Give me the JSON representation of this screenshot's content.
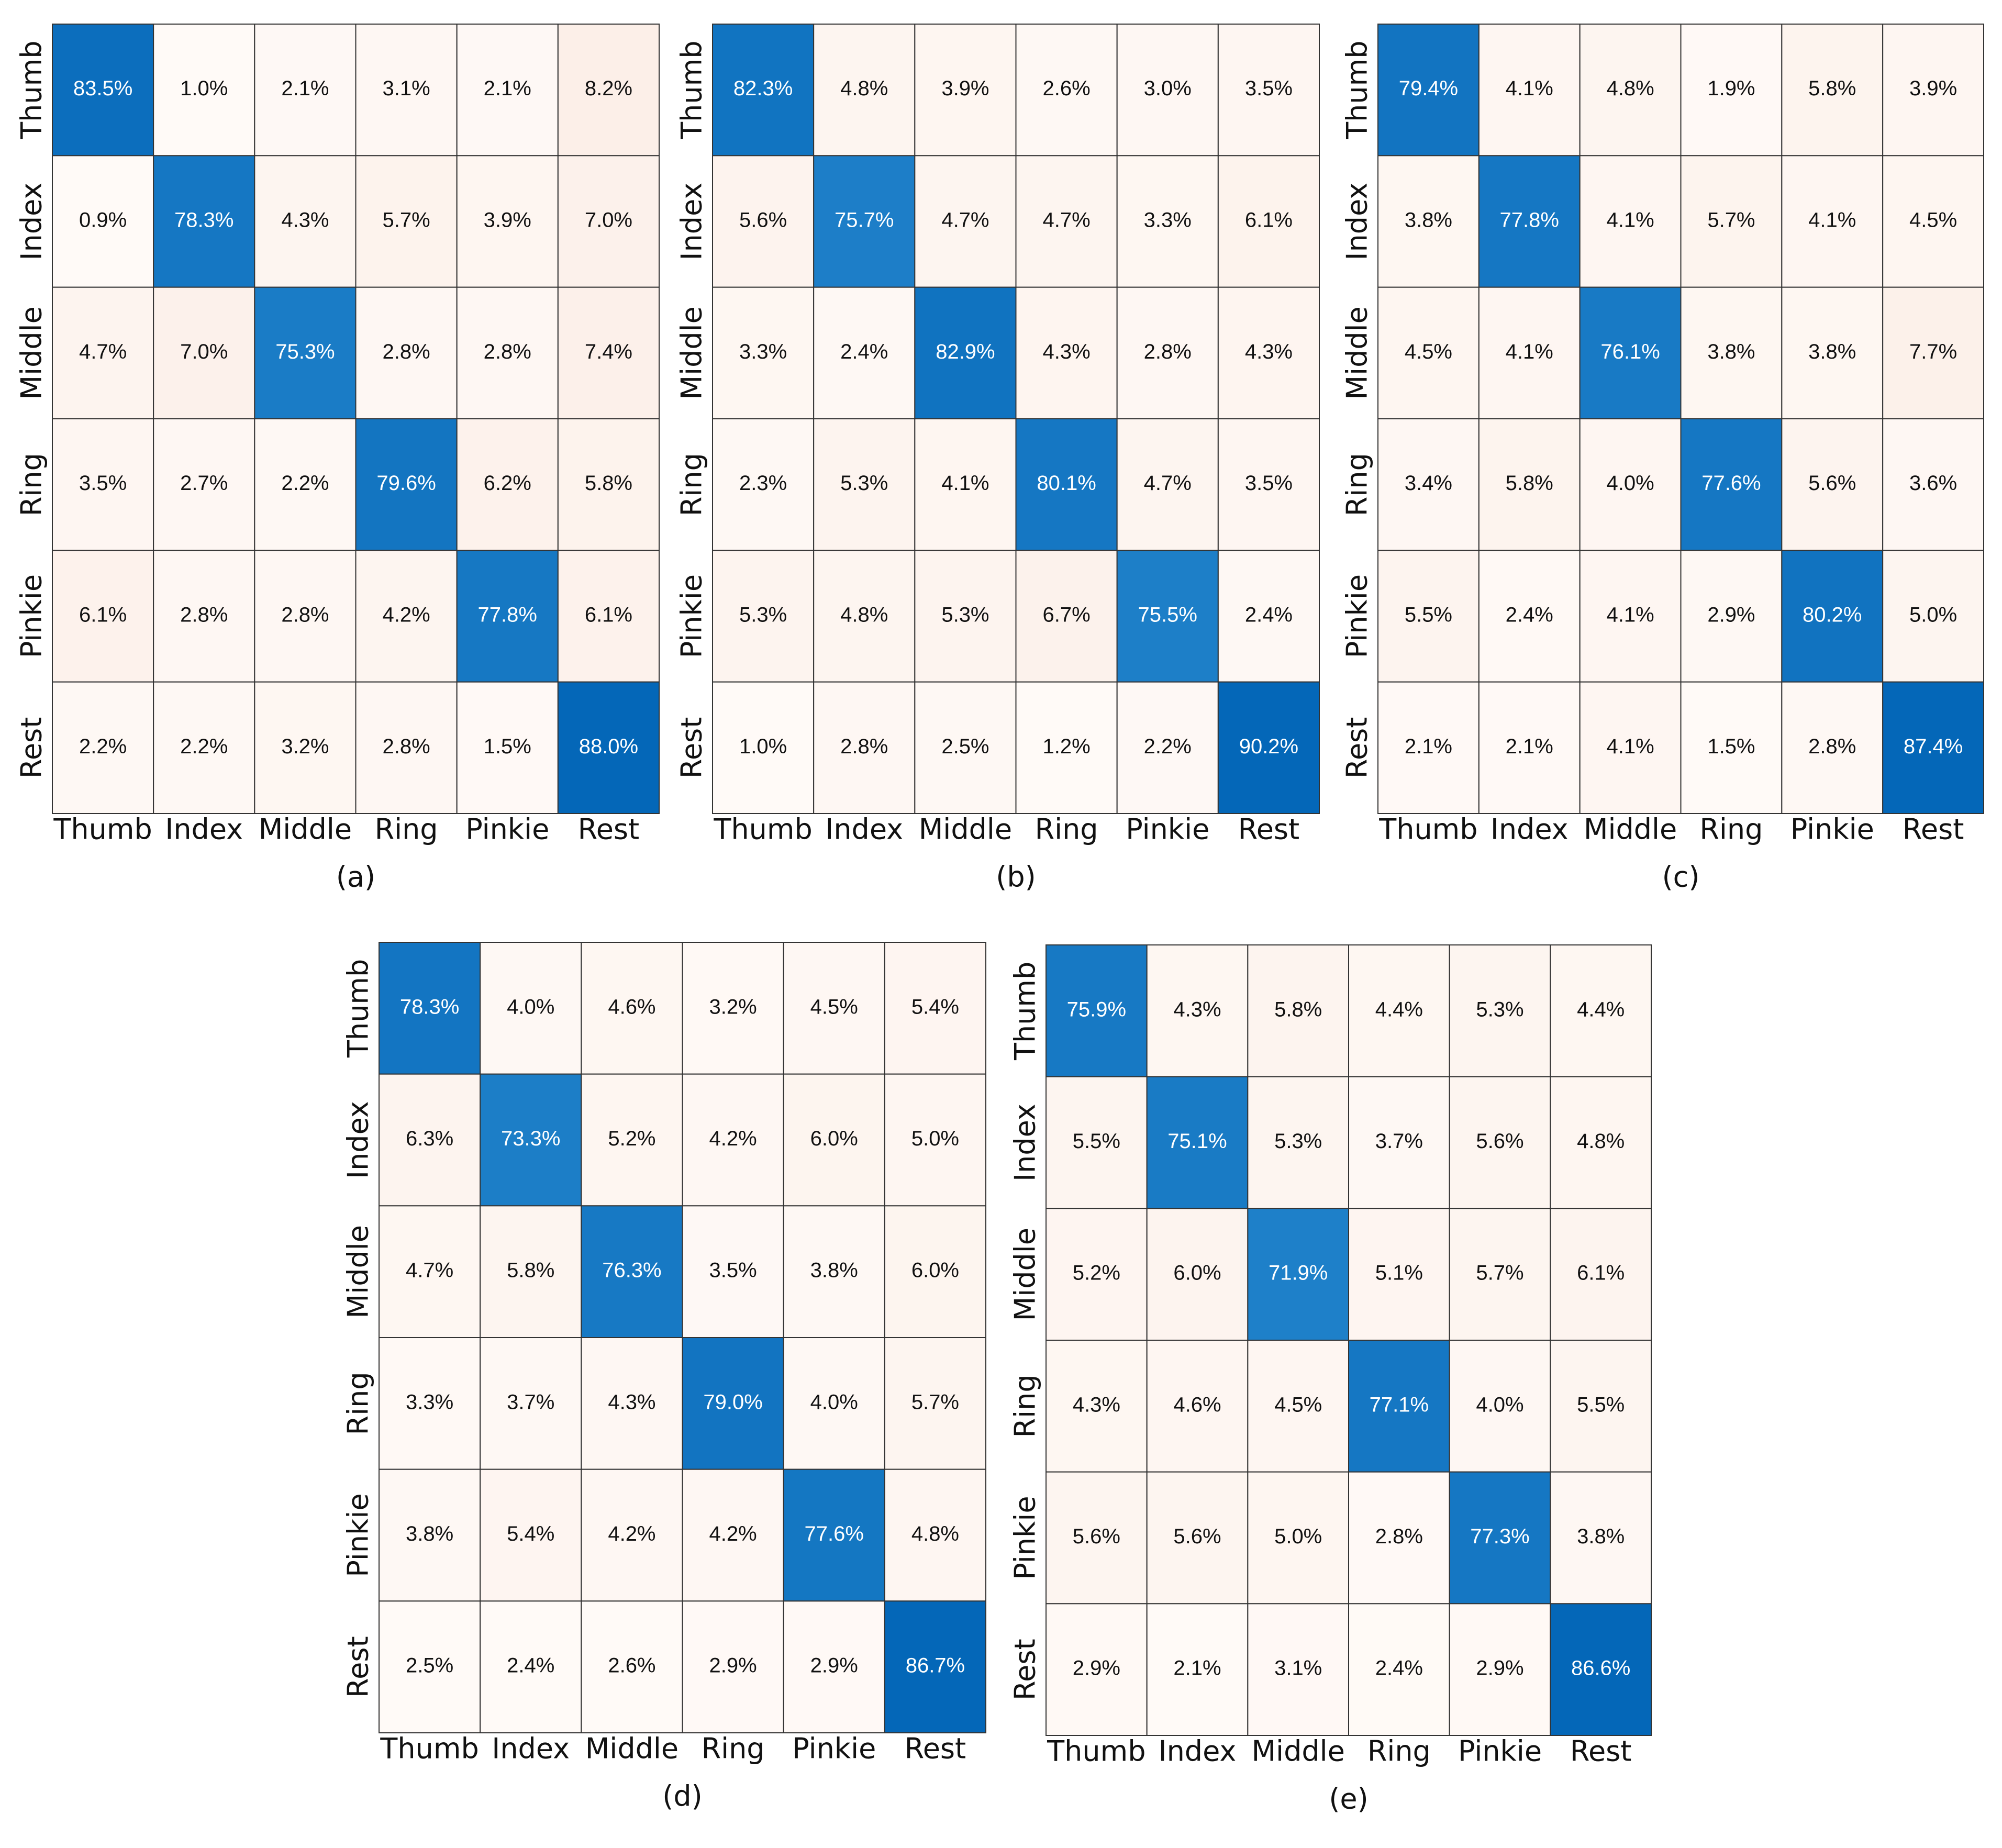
{
  "chart_data": [
    {
      "type": "heatmap",
      "caption": "(a)",
      "x_categories": [
        "Thumb",
        "Index",
        "Middle",
        "Ring",
        "Pinkie",
        "Rest"
      ],
      "y_categories": [
        "Thumb",
        "Index",
        "Middle",
        "Ring",
        "Pinkie",
        "Rest"
      ],
      "values": [
        [
          83.5,
          1.0,
          2.1,
          3.1,
          2.1,
          8.2
        ],
        [
          0.9,
          78.3,
          4.3,
          5.7,
          3.9,
          7.0
        ],
        [
          4.7,
          7.0,
          75.3,
          2.8,
          2.8,
          7.4
        ],
        [
          3.5,
          2.7,
          2.2,
          79.6,
          6.2,
          5.8
        ],
        [
          6.1,
          2.8,
          2.8,
          4.2,
          77.8,
          6.1
        ],
        [
          2.2,
          2.2,
          3.2,
          2.8,
          1.5,
          88.0
        ]
      ],
      "value_labels": [
        [
          "83.5%",
          "1.0%",
          "2.1%",
          "3.1%",
          "2.1%",
          "8.2%"
        ],
        [
          "0.9%",
          "78.3%",
          "4.3%",
          "5.7%",
          "3.9%",
          "7.0%"
        ],
        [
          "4.7%",
          "7.0%",
          "75.3%",
          "2.8%",
          "2.8%",
          "7.4%"
        ],
        [
          "3.5%",
          "2.7%",
          "2.2%",
          "79.6%",
          "6.2%",
          "5.8%"
        ],
        [
          "6.1%",
          "2.8%",
          "2.8%",
          "4.2%",
          "77.8%",
          "6.1%"
        ],
        [
          "2.2%",
          "2.2%",
          "3.2%",
          "2.8%",
          "1.5%",
          "88.0%"
        ]
      ],
      "colormap": [
        "#fffaf7",
        "#f5dacb",
        "#a9cbe6",
        "#2a8bd0",
        "#0467b8"
      ]
    },
    {
      "type": "heatmap",
      "caption": "(b)",
      "x_categories": [
        "Thumb",
        "Index",
        "Middle",
        "Ring",
        "Pinkie",
        "Rest"
      ],
      "y_categories": [
        "Thumb",
        "Index",
        "Middle",
        "Ring",
        "Pinkie",
        "Rest"
      ],
      "values": [
        [
          82.3,
          4.8,
          3.9,
          2.6,
          3.0,
          3.5
        ],
        [
          5.6,
          75.7,
          4.7,
          4.7,
          3.3,
          6.1
        ],
        [
          3.3,
          2.4,
          82.9,
          4.3,
          2.8,
          4.3
        ],
        [
          2.3,
          5.3,
          4.1,
          80.1,
          4.7,
          3.5
        ],
        [
          5.3,
          4.8,
          5.3,
          6.7,
          75.5,
          2.4
        ],
        [
          1.0,
          2.8,
          2.5,
          1.2,
          2.2,
          90.2
        ]
      ],
      "value_labels": [
        [
          "82.3%",
          "4.8%",
          "3.9%",
          "2.6%",
          "3.0%",
          "3.5%"
        ],
        [
          "5.6%",
          "75.7%",
          "4.7%",
          "4.7%",
          "3.3%",
          "6.1%"
        ],
        [
          "3.3%",
          "2.4%",
          "82.9%",
          "4.3%",
          "2.8%",
          "4.3%"
        ],
        [
          "2.3%",
          "5.3%",
          "4.1%",
          "80.1%",
          "4.7%",
          "3.5%"
        ],
        [
          "5.3%",
          "4.8%",
          "5.3%",
          "6.7%",
          "75.5%",
          "2.4%"
        ],
        [
          "1.0%",
          "2.8%",
          "2.5%",
          "1.2%",
          "2.2%",
          "90.2%"
        ]
      ],
      "colormap": [
        "#fffaf7",
        "#f5dacb",
        "#a9cbe6",
        "#2a8bd0",
        "#0467b8"
      ]
    },
    {
      "type": "heatmap",
      "caption": "(c)",
      "x_categories": [
        "Thumb",
        "Index",
        "Middle",
        "Ring",
        "Pinkie",
        "Rest"
      ],
      "y_categories": [
        "Thumb",
        "Index",
        "Middle",
        "Ring",
        "Pinkie",
        "Rest"
      ],
      "values": [
        [
          79.4,
          4.1,
          4.8,
          1.9,
          5.8,
          3.9
        ],
        [
          3.8,
          77.8,
          4.1,
          5.7,
          4.1,
          4.5
        ],
        [
          4.5,
          4.1,
          76.1,
          3.8,
          3.8,
          7.7
        ],
        [
          3.4,
          5.8,
          4.0,
          77.6,
          5.6,
          3.6
        ],
        [
          5.5,
          2.4,
          4.1,
          2.9,
          80.2,
          5.0
        ],
        [
          2.1,
          2.1,
          4.1,
          1.5,
          2.8,
          87.4
        ]
      ],
      "value_labels": [
        [
          "79.4%",
          "4.1%",
          "4.8%",
          "1.9%",
          "5.8%",
          "3.9%"
        ],
        [
          "3.8%",
          "77.8%",
          "4.1%",
          "5.7%",
          "4.1%",
          "4.5%"
        ],
        [
          "4.5%",
          "4.1%",
          "76.1%",
          "3.8%",
          "3.8%",
          "7.7%"
        ],
        [
          "3.4%",
          "5.8%",
          "4.0%",
          "77.6%",
          "5.6%",
          "3.6%"
        ],
        [
          "5.5%",
          "2.4%",
          "4.1%",
          "2.9%",
          "80.2%",
          "5.0%"
        ],
        [
          "2.1%",
          "2.1%",
          "4.1%",
          "1.5%",
          "2.8%",
          "87.4%"
        ]
      ],
      "colormap": [
        "#fffaf7",
        "#f5dacb",
        "#a9cbe6",
        "#2a8bd0",
        "#0467b8"
      ]
    },
    {
      "type": "heatmap",
      "caption": "(d)",
      "x_categories": [
        "Thumb",
        "Index",
        "Middle",
        "Ring",
        "Pinkie",
        "Rest"
      ],
      "y_categories": [
        "Thumb",
        "Index",
        "Middle",
        "Ring",
        "Pinkie",
        "Rest"
      ],
      "values": [
        [
          78.3,
          4.0,
          4.6,
          3.2,
          4.5,
          5.4
        ],
        [
          6.3,
          73.3,
          5.2,
          4.2,
          6.0,
          5.0
        ],
        [
          4.7,
          5.8,
          76.3,
          3.5,
          3.8,
          6.0
        ],
        [
          3.3,
          3.7,
          4.3,
          79.0,
          4.0,
          5.7
        ],
        [
          3.8,
          5.4,
          4.2,
          4.2,
          77.6,
          4.8
        ],
        [
          2.5,
          2.4,
          2.6,
          2.9,
          2.9,
          86.7
        ]
      ],
      "value_labels": [
        [
          "78.3%",
          "4.0%",
          "4.6%",
          "3.2%",
          "4.5%",
          "5.4%"
        ],
        [
          "6.3%",
          "73.3%",
          "5.2%",
          "4.2%",
          "6.0%",
          "5.0%"
        ],
        [
          "4.7%",
          "5.8%",
          "76.3%",
          "3.5%",
          "3.8%",
          "6.0%"
        ],
        [
          "3.3%",
          "3.7%",
          "4.3%",
          "79.0%",
          "4.0%",
          "5.7%"
        ],
        [
          "3.8%",
          "5.4%",
          "4.2%",
          "4.2%",
          "77.6%",
          "4.8%"
        ],
        [
          "2.5%",
          "2.4%",
          "2.6%",
          "2.9%",
          "2.9%",
          "86.7%"
        ]
      ],
      "colormap": [
        "#fffaf7",
        "#f5dacb",
        "#a9cbe6",
        "#2a8bd0",
        "#0467b8"
      ]
    },
    {
      "type": "heatmap",
      "caption": "(e)",
      "x_categories": [
        "Thumb",
        "Index",
        "Middle",
        "Ring",
        "Pinkie",
        "Rest"
      ],
      "y_categories": [
        "Thumb",
        "Index",
        "Middle",
        "Ring",
        "Pinkie",
        "Rest"
      ],
      "values": [
        [
          75.9,
          4.3,
          5.8,
          4.4,
          5.3,
          4.4
        ],
        [
          5.5,
          75.1,
          5.3,
          3.7,
          5.6,
          4.8
        ],
        [
          5.2,
          6.0,
          71.9,
          5.1,
          5.7,
          6.1
        ],
        [
          4.3,
          4.6,
          4.5,
          77.1,
          4.0,
          5.5
        ],
        [
          5.6,
          5.6,
          5.0,
          2.8,
          77.3,
          3.8
        ],
        [
          2.9,
          2.1,
          3.1,
          2.4,
          2.9,
          86.6
        ]
      ],
      "value_labels": [
        [
          "75.9%",
          "4.3%",
          "5.8%",
          "4.4%",
          "5.3%",
          "4.4%"
        ],
        [
          "5.5%",
          "75.1%",
          "5.3%",
          "3.7%",
          "5.6%",
          "4.8%"
        ],
        [
          "5.2%",
          "6.0%",
          "71.9%",
          "5.1%",
          "5.7%",
          "6.1%"
        ],
        [
          "4.3%",
          "4.6%",
          "4.5%",
          "77.1%",
          "4.0%",
          "5.5%"
        ],
        [
          "5.6%",
          "5.6%",
          "5.0%",
          "2.8%",
          "77.3%",
          "3.8%"
        ],
        [
          "2.9%",
          "2.1%",
          "3.1%",
          "2.4%",
          "2.9%",
          "86.6%"
        ]
      ],
      "colormap": [
        "#fffaf7",
        "#f5dacb",
        "#a9cbe6",
        "#2a8bd0",
        "#0467b8"
      ]
    }
  ]
}
